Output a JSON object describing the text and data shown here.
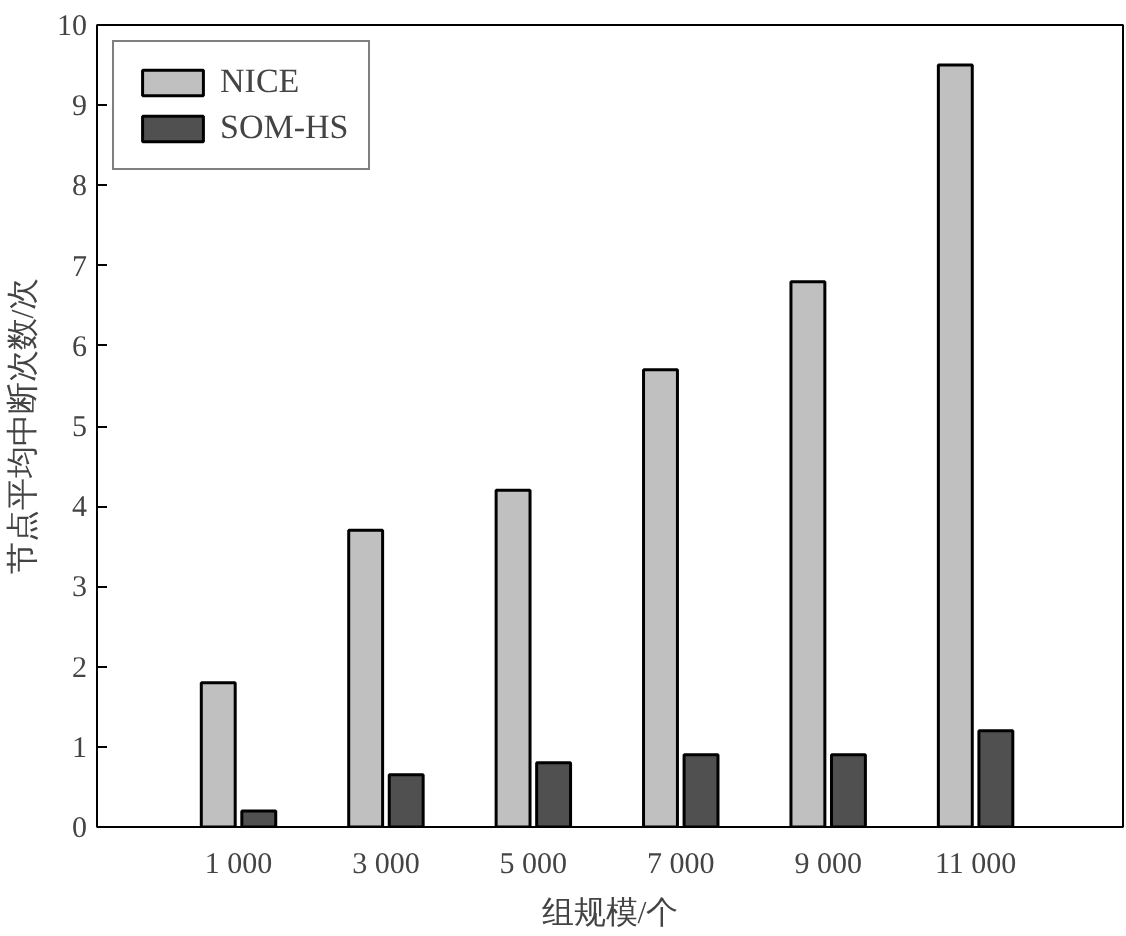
{
  "chart_data": {
    "type": "bar",
    "xlabel": "组规模/个",
    "ylabel": "节点平均中断次数/次",
    "categories": [
      "1 000",
      "3 000",
      "5 000",
      "7 000",
      "9 000",
      "11 000"
    ],
    "series": [
      {
        "name": "NICE",
        "color": "#c0c0c0",
        "values": [
          1.8,
          3.7,
          4.2,
          5.7,
          6.8,
          9.5
        ]
      },
      {
        "name": "SOM-HS",
        "color": "#505050",
        "values": [
          0.2,
          0.65,
          0.8,
          0.9,
          0.9,
          1.2
        ]
      }
    ],
    "ylim": [
      0,
      10
    ],
    "yticks": [
      0,
      1,
      2,
      3,
      4,
      5,
      6,
      7,
      8,
      9,
      10
    ],
    "grid": false,
    "legend": "top left"
  }
}
